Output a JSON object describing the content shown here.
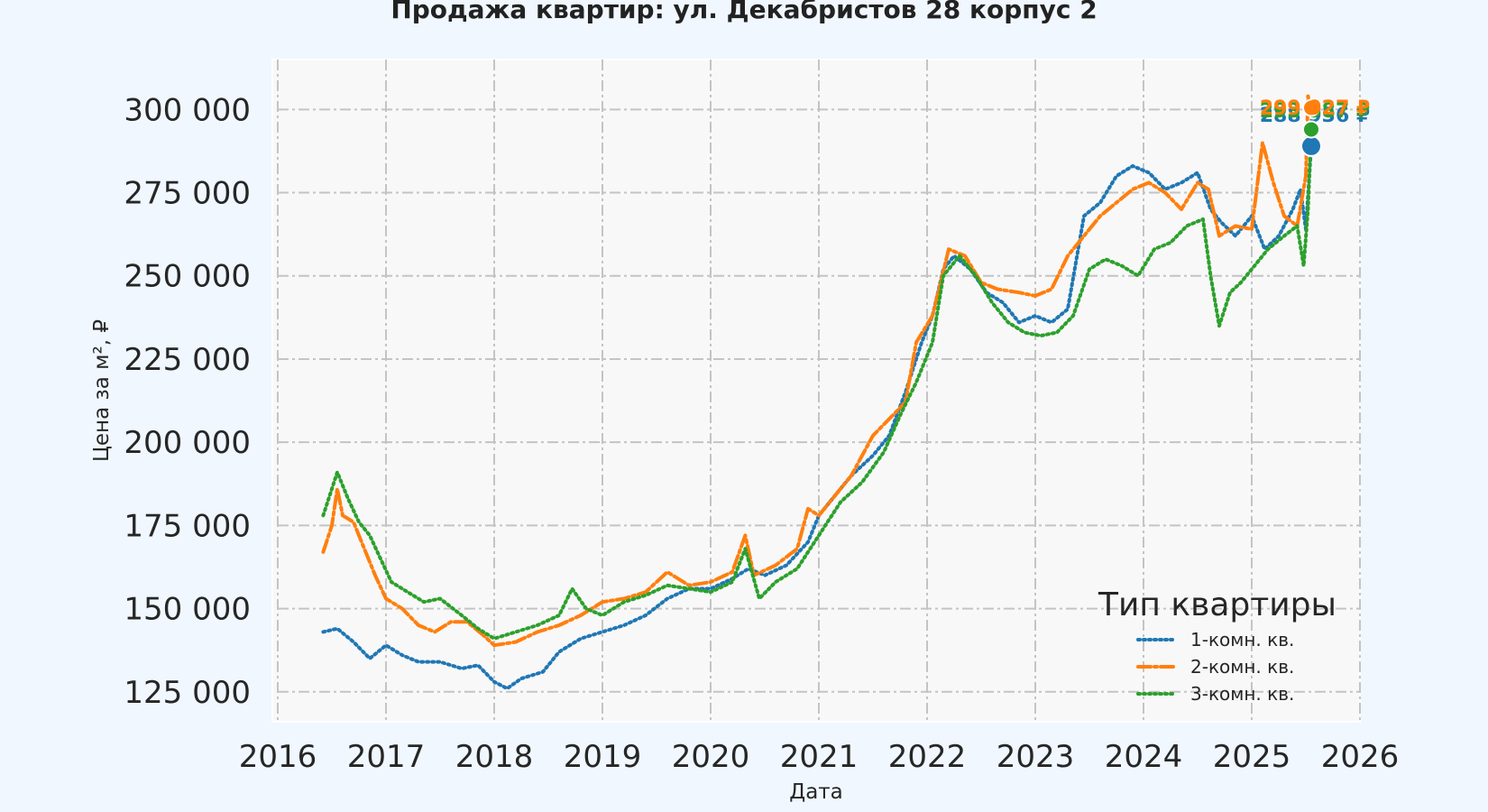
{
  "chart_data": {
    "type": "line",
    "title": "Продажа квартир: ул. Декабристов 28 корпус 2",
    "xlabel": "Дата",
    "ylabel": "Цена за м², ₽",
    "xlim": [
      2016.0,
      2026.0
    ],
    "ylim": [
      116000,
      315000
    ],
    "x_ticks": [
      2016,
      2017,
      2018,
      2019,
      2020,
      2021,
      2022,
      2023,
      2024,
      2025,
      2026
    ],
    "x_tick_labels": [
      "2016",
      "2017",
      "2018",
      "2019",
      "2020",
      "2021",
      "2022",
      "2023",
      "2024",
      "2025",
      "2026"
    ],
    "y_ticks": [
      125000,
      150000,
      175000,
      200000,
      225000,
      250000,
      275000,
      300000
    ],
    "y_tick_labels": [
      "125 000",
      "150 000",
      "175 000",
      "200 000",
      "225 000",
      "250 000",
      "275 000",
      "300 000"
    ],
    "grid": true,
    "legend": {
      "title": "Тип квартиры",
      "position": "lower-right"
    },
    "series": [
      {
        "name": "1-комн. кв.",
        "color": "#1f77b4",
        "dash": "dotted",
        "points": [
          [
            2016.42,
            143000
          ],
          [
            2016.55,
            144000
          ],
          [
            2016.7,
            140000
          ],
          [
            2016.85,
            135000
          ],
          [
            2017.0,
            139000
          ],
          [
            2017.15,
            136000
          ],
          [
            2017.3,
            134000
          ],
          [
            2017.5,
            134000
          ],
          [
            2017.7,
            132000
          ],
          [
            2017.85,
            133000
          ],
          [
            2018.0,
            128000
          ],
          [
            2018.12,
            126000
          ],
          [
            2018.25,
            129000
          ],
          [
            2018.45,
            131000
          ],
          [
            2018.6,
            137000
          ],
          [
            2018.8,
            141000
          ],
          [
            2019.0,
            143000
          ],
          [
            2019.2,
            145000
          ],
          [
            2019.4,
            148000
          ],
          [
            2019.6,
            153000
          ],
          [
            2019.8,
            156000
          ],
          [
            2020.0,
            156000
          ],
          [
            2020.2,
            159000
          ],
          [
            2020.35,
            162000
          ],
          [
            2020.5,
            160000
          ],
          [
            2020.7,
            163000
          ],
          [
            2020.9,
            170000
          ],
          [
            2021.0,
            178000
          ],
          [
            2021.15,
            184000
          ],
          [
            2021.3,
            190000
          ],
          [
            2021.5,
            196000
          ],
          [
            2021.65,
            202000
          ],
          [
            2021.8,
            215000
          ],
          [
            2021.95,
            230000
          ],
          [
            2022.05,
            238000
          ],
          [
            2022.15,
            252000
          ],
          [
            2022.25,
            256000
          ],
          [
            2022.4,
            252000
          ],
          [
            2022.55,
            245000
          ],
          [
            2022.7,
            242000
          ],
          [
            2022.85,
            236000
          ],
          [
            2023.0,
            238000
          ],
          [
            2023.15,
            236000
          ],
          [
            2023.3,
            240000
          ],
          [
            2023.45,
            268000
          ],
          [
            2023.6,
            272000
          ],
          [
            2023.75,
            280000
          ],
          [
            2023.9,
            283000
          ],
          [
            2024.05,
            281000
          ],
          [
            2024.2,
            276000
          ],
          [
            2024.35,
            278000
          ],
          [
            2024.5,
            281000
          ],
          [
            2024.62,
            270000
          ],
          [
            2024.72,
            266000
          ],
          [
            2024.85,
            262000
          ],
          [
            2025.0,
            268000
          ],
          [
            2025.12,
            258000
          ],
          [
            2025.25,
            262000
          ],
          [
            2025.38,
            270000
          ],
          [
            2025.45,
            276000
          ],
          [
            2025.5,
            264000
          ],
          [
            2025.55,
            289000
          ]
        ]
      },
      {
        "name": "2-комн. кв.",
        "color": "#ff7f0e",
        "dash": "dashdot",
        "points": [
          [
            2016.42,
            167000
          ],
          [
            2016.5,
            175000
          ],
          [
            2016.55,
            186000
          ],
          [
            2016.6,
            178000
          ],
          [
            2016.7,
            176000
          ],
          [
            2016.8,
            168000
          ],
          [
            2016.9,
            160000
          ],
          [
            2017.0,
            153000
          ],
          [
            2017.15,
            150000
          ],
          [
            2017.3,
            145000
          ],
          [
            2017.45,
            143000
          ],
          [
            2017.6,
            146000
          ],
          [
            2017.75,
            146000
          ],
          [
            2017.9,
            142000
          ],
          [
            2018.0,
            139000
          ],
          [
            2018.2,
            140000
          ],
          [
            2018.4,
            143000
          ],
          [
            2018.6,
            145000
          ],
          [
            2018.8,
            148000
          ],
          [
            2019.0,
            152000
          ],
          [
            2019.2,
            153000
          ],
          [
            2019.4,
            155000
          ],
          [
            2019.6,
            161000
          ],
          [
            2019.8,
            157000
          ],
          [
            2020.0,
            158000
          ],
          [
            2020.2,
            161000
          ],
          [
            2020.32,
            172000
          ],
          [
            2020.4,
            160000
          ],
          [
            2020.6,
            163000
          ],
          [
            2020.8,
            168000
          ],
          [
            2020.9,
            180000
          ],
          [
            2021.0,
            178000
          ],
          [
            2021.15,
            184000
          ],
          [
            2021.3,
            190000
          ],
          [
            2021.5,
            202000
          ],
          [
            2021.65,
            207000
          ],
          [
            2021.8,
            212000
          ],
          [
            2021.9,
            230000
          ],
          [
            2022.05,
            238000
          ],
          [
            2022.2,
            258000
          ],
          [
            2022.35,
            256000
          ],
          [
            2022.5,
            248000
          ],
          [
            2022.65,
            246000
          ],
          [
            2022.85,
            245000
          ],
          [
            2023.0,
            244000
          ],
          [
            2023.15,
            246000
          ],
          [
            2023.3,
            256000
          ],
          [
            2023.45,
            262000
          ],
          [
            2023.6,
            268000
          ],
          [
            2023.75,
            272000
          ],
          [
            2023.9,
            276000
          ],
          [
            2024.05,
            278000
          ],
          [
            2024.2,
            275000
          ],
          [
            2024.35,
            270000
          ],
          [
            2024.5,
            278000
          ],
          [
            2024.6,
            276000
          ],
          [
            2024.7,
            262000
          ],
          [
            2024.85,
            265000
          ],
          [
            2025.0,
            264000
          ],
          [
            2025.1,
            290000
          ],
          [
            2025.2,
            278000
          ],
          [
            2025.3,
            268000
          ],
          [
            2025.42,
            265000
          ],
          [
            2025.5,
            280000
          ],
          [
            2025.52,
            304000
          ],
          [
            2025.55,
            300000
          ]
        ]
      },
      {
        "name": "3-комн. кв.",
        "color": "#2ca02c",
        "dash": "dotted",
        "points": [
          [
            2016.42,
            178000
          ],
          [
            2016.5,
            186000
          ],
          [
            2016.55,
            191000
          ],
          [
            2016.65,
            183000
          ],
          [
            2016.75,
            176000
          ],
          [
            2016.85,
            172000
          ],
          [
            2016.95,
            165000
          ],
          [
            2017.05,
            158000
          ],
          [
            2017.2,
            155000
          ],
          [
            2017.35,
            152000
          ],
          [
            2017.5,
            153000
          ],
          [
            2017.7,
            148000
          ],
          [
            2017.85,
            144000
          ],
          [
            2018.0,
            141000
          ],
          [
            2018.2,
            143000
          ],
          [
            2018.4,
            145000
          ],
          [
            2018.6,
            148000
          ],
          [
            2018.72,
            156000
          ],
          [
            2018.85,
            150000
          ],
          [
            2019.0,
            148000
          ],
          [
            2019.2,
            152000
          ],
          [
            2019.4,
            154000
          ],
          [
            2019.6,
            157000
          ],
          [
            2019.8,
            156000
          ],
          [
            2020.0,
            155000
          ],
          [
            2020.2,
            158000
          ],
          [
            2020.32,
            168000
          ],
          [
            2020.45,
            153000
          ],
          [
            2020.6,
            158000
          ],
          [
            2020.8,
            162000
          ],
          [
            2021.0,
            172000
          ],
          [
            2021.2,
            182000
          ],
          [
            2021.4,
            188000
          ],
          [
            2021.6,
            197000
          ],
          [
            2021.75,
            208000
          ],
          [
            2021.9,
            218000
          ],
          [
            2022.05,
            230000
          ],
          [
            2022.15,
            250000
          ],
          [
            2022.3,
            256000
          ],
          [
            2022.45,
            250000
          ],
          [
            2022.6,
            242000
          ],
          [
            2022.75,
            236000
          ],
          [
            2022.9,
            233000
          ],
          [
            2023.05,
            232000
          ],
          [
            2023.2,
            233000
          ],
          [
            2023.35,
            238000
          ],
          [
            2023.5,
            252000
          ],
          [
            2023.65,
            255000
          ],
          [
            2023.8,
            253000
          ],
          [
            2023.95,
            250000
          ],
          [
            2024.1,
            258000
          ],
          [
            2024.25,
            260000
          ],
          [
            2024.4,
            265000
          ],
          [
            2024.55,
            267000
          ],
          [
            2024.62,
            250000
          ],
          [
            2024.7,
            235000
          ],
          [
            2024.8,
            245000
          ],
          [
            2024.9,
            248000
          ],
          [
            2025.0,
            252000
          ],
          [
            2025.15,
            258000
          ],
          [
            2025.3,
            262000
          ],
          [
            2025.42,
            265000
          ],
          [
            2025.48,
            253000
          ],
          [
            2025.52,
            270000
          ],
          [
            2025.55,
            294000
          ]
        ]
      }
    ],
    "end_markers": [
      {
        "series": "1-комн. кв.",
        "x": 2025.55,
        "y": 289000,
        "label": "288 936 ₽"
      },
      {
        "series": "3-комн. кв.",
        "x": 2025.55,
        "y": 294000,
        "label": "293 587 ₽"
      },
      {
        "series": "2-комн. кв.",
        "x": 2025.55,
        "y": 300500,
        "label": "299 927 ₽"
      }
    ]
  }
}
